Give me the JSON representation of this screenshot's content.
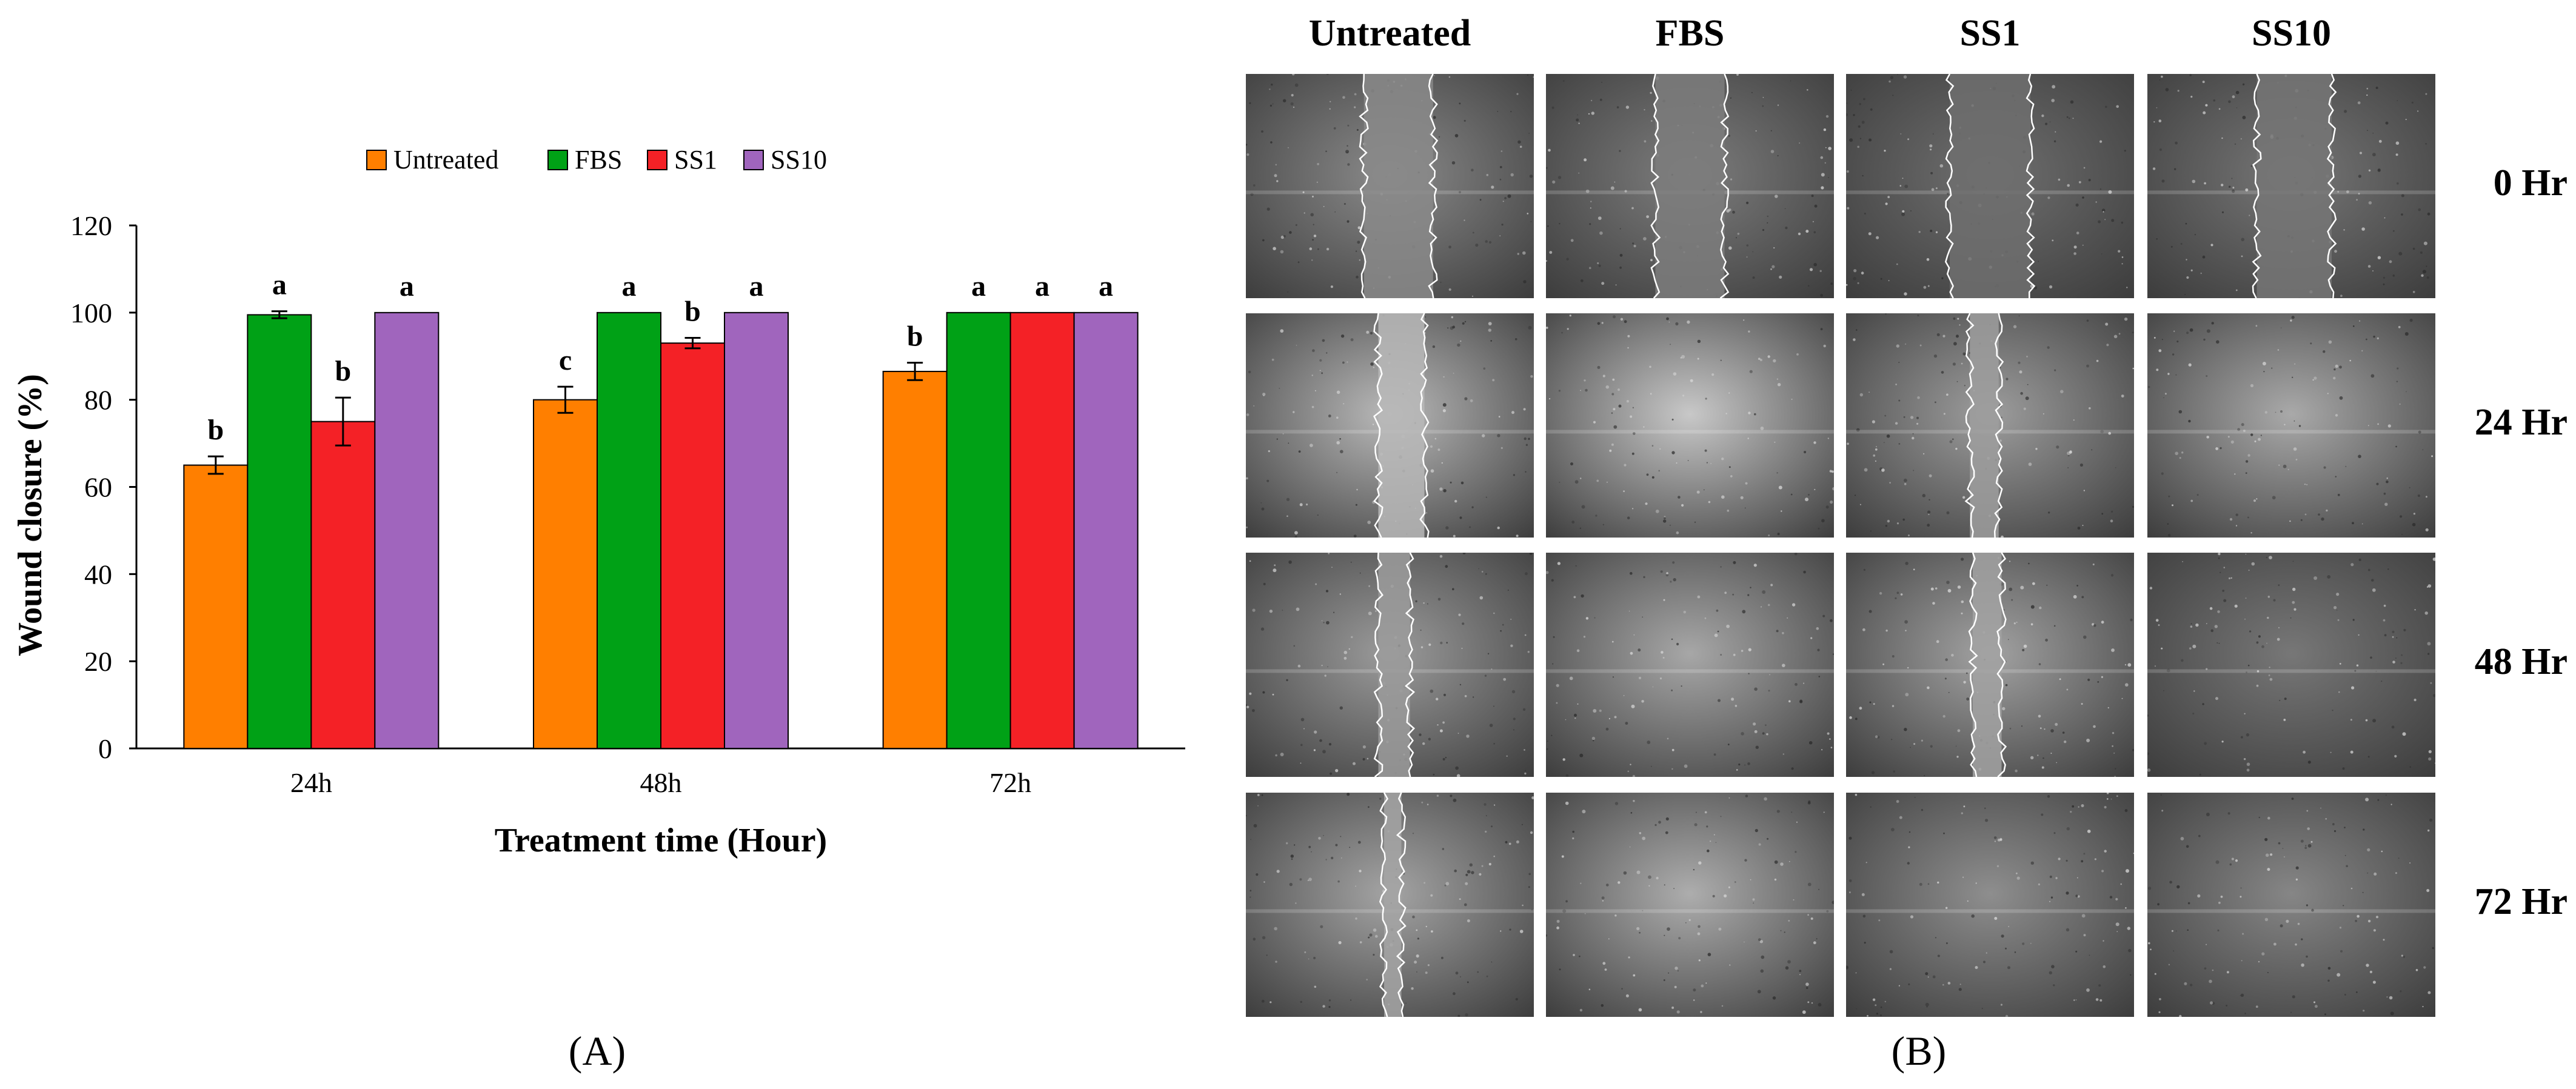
{
  "chart_data": {
    "type": "bar",
    "ylabel": "Wound closure (%)",
    "xlabel": "Treatment time (Hour)",
    "ylim": [
      0,
      120
    ],
    "yticks": [
      "0",
      "20",
      "40",
      "60",
      "80",
      "100",
      "120"
    ],
    "categories": [
      "24h",
      "48h",
      "72h"
    ],
    "legend_position": "top-center",
    "series": [
      {
        "name": "Untreated",
        "color": "#ff7f00",
        "values": [
          65,
          80,
          86.5
        ],
        "errors": [
          2,
          3,
          2
        ],
        "letters": [
          "b",
          "c",
          "b"
        ]
      },
      {
        "name": "FBS",
        "color": "#00a116",
        "values": [
          99.5,
          100,
          100
        ],
        "errors": [
          0.8,
          0,
          0
        ],
        "letters": [
          "a",
          "a",
          "a"
        ]
      },
      {
        "name": "SS1",
        "color": "#f42126",
        "values": [
          75,
          93,
          100
        ],
        "errors": [
          5.5,
          1.2,
          0
        ],
        "letters": [
          "b",
          "b",
          "a"
        ]
      },
      {
        "name": "SS10",
        "color": "#a065bd",
        "values": [
          100,
          100,
          100
        ],
        "errors": [
          0,
          0,
          0
        ],
        "letters": [
          "a",
          "a",
          "a"
        ]
      }
    ],
    "grid": false
  },
  "panels": {
    "a_label": "(A)",
    "b_label": "(B)"
  },
  "micrographs": {
    "columns": [
      "Untreated",
      "FBS",
      "SS1",
      "SS10"
    ],
    "rows": [
      "0 Hr",
      "24 Hr",
      "48 Hr",
      "72 Hr"
    ]
  }
}
